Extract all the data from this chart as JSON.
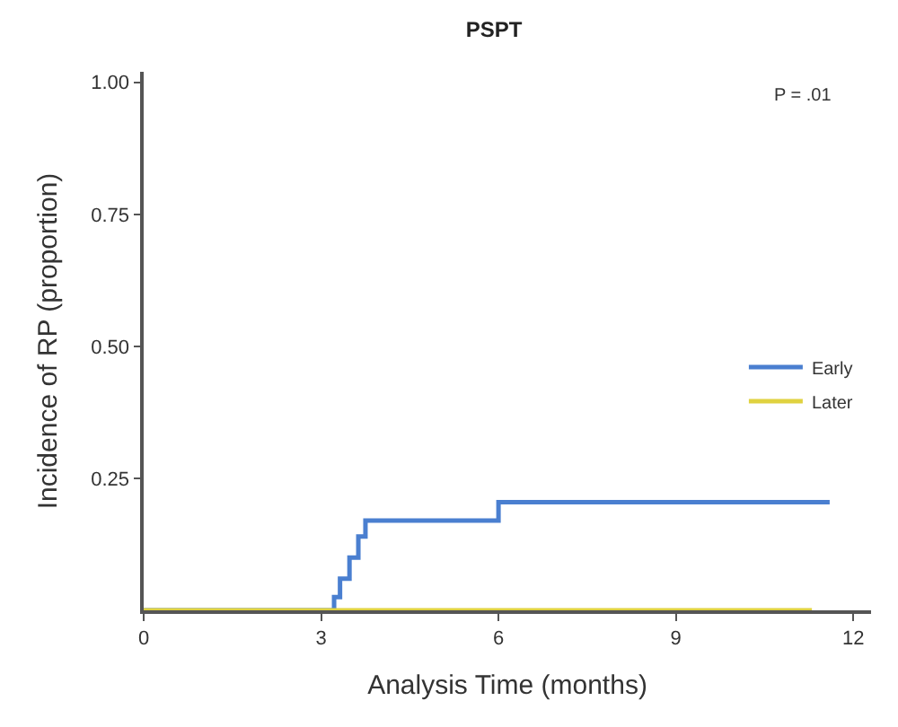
{
  "chart_data": {
    "type": "step",
    "title": "PSPT",
    "xlabel": "Analysis Time (months)",
    "ylabel": "Incidence of RP (proportion)",
    "series": [
      {
        "name": "Early",
        "color": "#4a7fd0",
        "x": [
          0,
          3.22,
          3.32,
          3.48,
          3.63,
          3.75,
          6.0,
          11.6
        ],
        "values": [
          0,
          0.025,
          0.06,
          0.1,
          0.14,
          0.17,
          0.205,
          0.205
        ]
      },
      {
        "name": "Later",
        "color": "#e0d240",
        "x": [
          0,
          11.3
        ],
        "values": [
          0,
          0
        ]
      }
    ],
    "xlim": [
      0,
      12.3
    ],
    "ylim": [
      0,
      1.02
    ],
    "xticks": [
      0,
      3,
      6,
      9,
      12
    ],
    "yticks": [
      {
        "value": 0.25,
        "label": "0.25"
      },
      {
        "value": 0.5,
        "label": "0.50"
      },
      {
        "value": 0.75,
        "label": "0.75"
      },
      {
        "value": 1.0,
        "label": "1.00"
      }
    ],
    "annotations": [
      "P = .01"
    ],
    "legend": "right",
    "line_style": "solid",
    "marker": "none"
  }
}
